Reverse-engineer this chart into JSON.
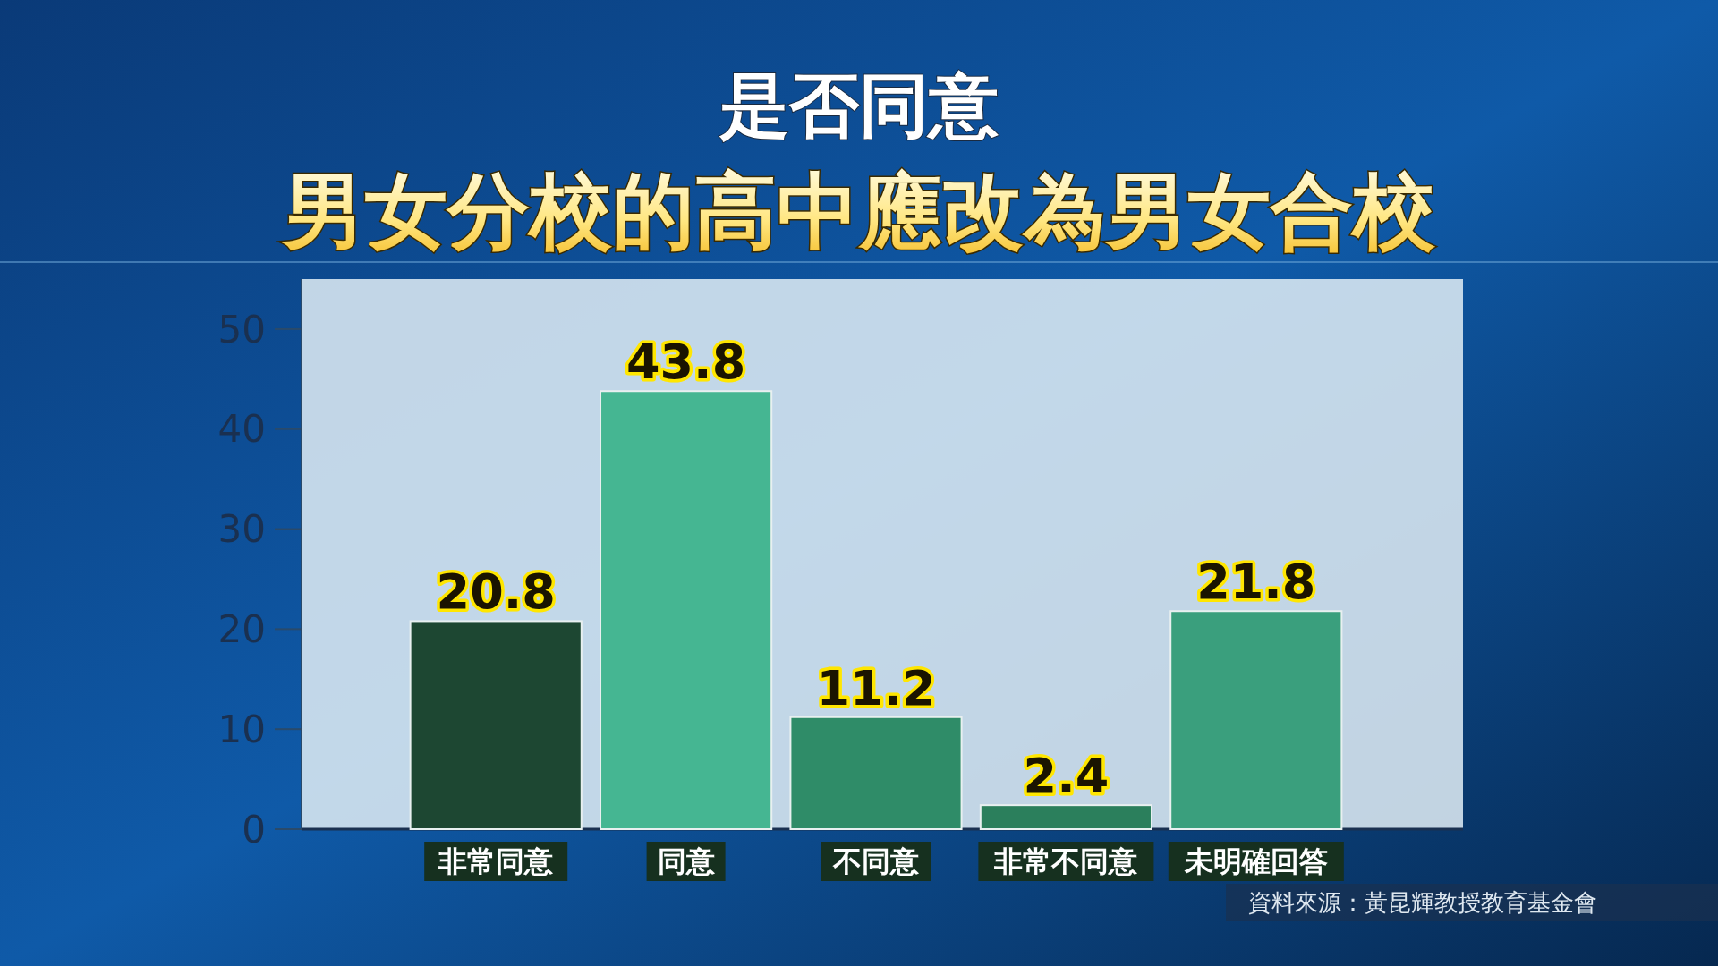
{
  "chart_data": {
    "type": "bar",
    "title": "是否同意",
    "subtitle": "男女分校的高中應改為男女合校",
    "categories": [
      "非常同意",
      "同意",
      "不同意",
      "非常不同意",
      "未明確回答"
    ],
    "values": [
      20.8,
      43.8,
      11.2,
      2.4,
      21.8
    ],
    "colors": [
      "#1d4732",
      "#45b692",
      "#2f8c68",
      "#2b7f5c",
      "#3a9f7d"
    ],
    "ylim": [
      0,
      55
    ],
    "yticks": [
      0,
      10,
      20,
      30,
      40,
      50
    ],
    "grid": false,
    "data_labels": true,
    "annotations": [
      "資料來源：黃昆輝教授教育基金會"
    ]
  }
}
